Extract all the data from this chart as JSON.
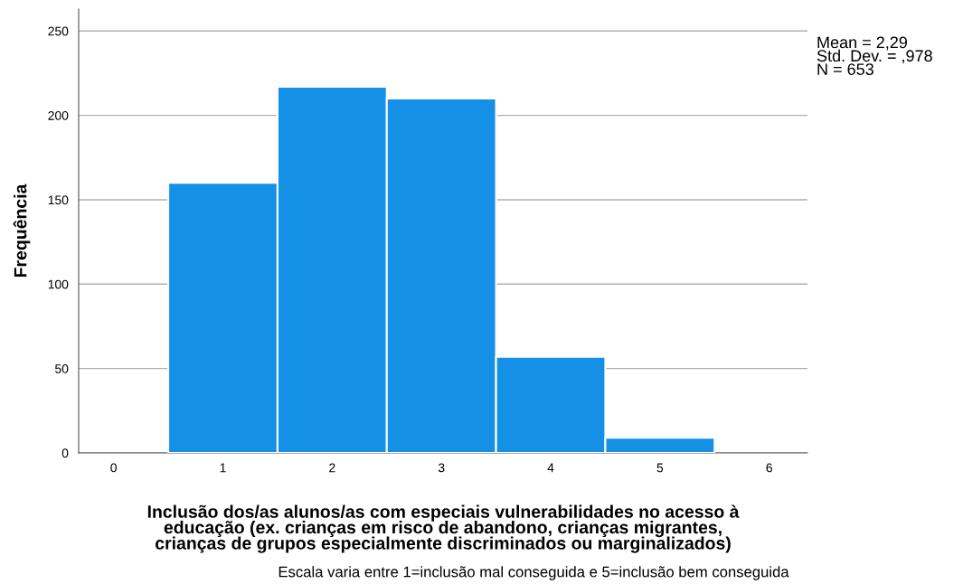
{
  "chart_data": {
    "type": "histogram",
    "xlabel": "Inclusão dos/as alunos/as com especiais vulnerabilidades no acesso à\neducação (ex. crianças em risco de abandono, crianças migrantes,\ncrianças de grupos especialmente discriminados ou marginalizados)",
    "ylabel": "Frequência",
    "bins": [
      0.5,
      1.5,
      2.5,
      3.5,
      4.5,
      5.5
    ],
    "values": [
      160,
      217,
      210,
      57,
      9
    ],
    "color": "#1490e6",
    "xlim": [
      -0.32,
      6.35
    ],
    "xticks": [
      0,
      1,
      2,
      3,
      4,
      5,
      6
    ],
    "ylim": [
      0,
      263
    ],
    "yticks": [
      0,
      50,
      100,
      150,
      200,
      250
    ],
    "grid": "y",
    "annotations": [
      "Mean = 2,29\nStd. Dev. = ,978\nN = 653",
      "Escala varia entre 1=inclusão mal conseguida e 5=inclusão bem conseguida"
    ]
  }
}
